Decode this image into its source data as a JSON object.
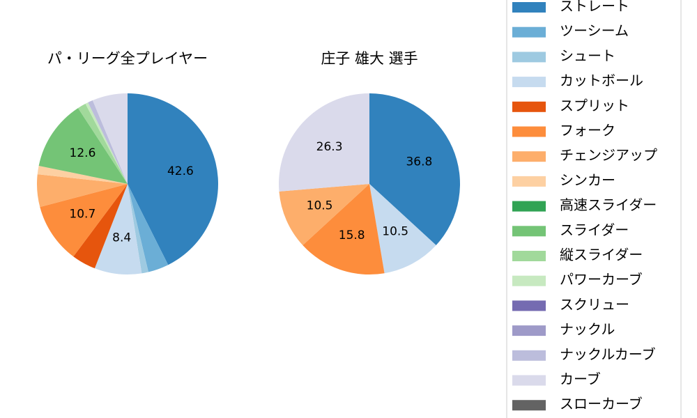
{
  "legend": {
    "items": [
      {
        "name": "ストレート",
        "color": "#3182bd"
      },
      {
        "name": "ツーシーム",
        "color": "#6baed6"
      },
      {
        "name": "シュート",
        "color": "#9ecae1"
      },
      {
        "name": "カットボール",
        "color": "#c6dbef"
      },
      {
        "name": "スプリット",
        "color": "#e6550d"
      },
      {
        "name": "フォーク",
        "color": "#fd8d3c"
      },
      {
        "name": "チェンジアップ",
        "color": "#fdae6b"
      },
      {
        "name": "シンカー",
        "color": "#fdd0a2"
      },
      {
        "name": "高速スライダー",
        "color": "#31a354"
      },
      {
        "name": "スライダー",
        "color": "#74c476"
      },
      {
        "name": "縦スライダー",
        "color": "#a1d99b"
      },
      {
        "name": "パワーカーブ",
        "color": "#c7e9c0"
      },
      {
        "name": "スクリュー",
        "color": "#756bb1"
      },
      {
        "name": "ナックル",
        "color": "#9e9ac8"
      },
      {
        "name": "ナックルカーブ",
        "color": "#bcbddc"
      },
      {
        "name": "カーブ",
        "color": "#dadaeb"
      },
      {
        "name": "スローカーブ",
        "color": "#636363"
      }
    ]
  },
  "chart_data": [
    {
      "type": "pie",
      "title": "パ・リーグ全プレイヤー",
      "values": [
        42.6,
        3.7,
        1.2,
        8.4,
        4.3,
        10.7,
        5.8,
        1.5,
        0,
        12.6,
        1.5,
        0.5,
        0,
        0,
        0.9,
        6.3,
        0
      ],
      "value_labels": [
        "42.6",
        null,
        null,
        "8.4",
        null,
        "10.7",
        null,
        null,
        null,
        "12.6",
        null,
        null,
        null,
        null,
        null,
        null,
        null
      ]
    },
    {
      "type": "pie",
      "title": "庄子 雄大  選手",
      "values": [
        36.8,
        0,
        0,
        10.5,
        0,
        15.8,
        10.5,
        0,
        0,
        0,
        0,
        0,
        0,
        0,
        0,
        26.3,
        0
      ],
      "value_labels": [
        "36.8",
        null,
        null,
        "10.5",
        null,
        "15.8",
        "10.5",
        null,
        null,
        null,
        null,
        null,
        null,
        null,
        null,
        "26.3",
        null
      ]
    }
  ]
}
